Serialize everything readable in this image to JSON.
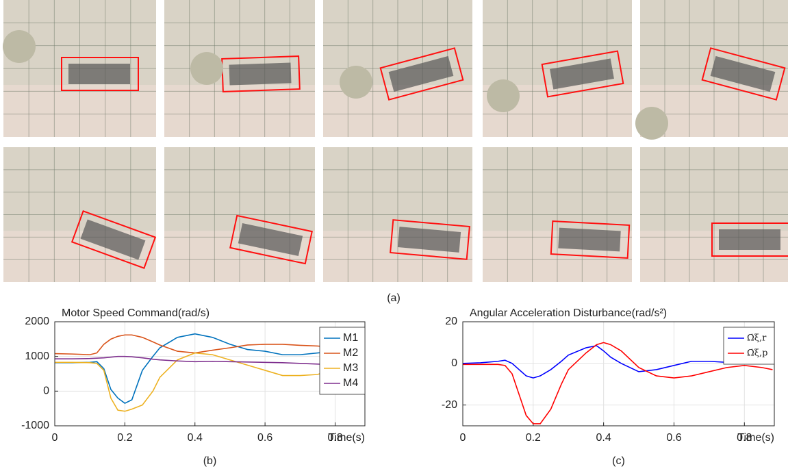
{
  "photo_caption": "(a)",
  "chart_data": [
    {
      "type": "line",
      "title": "Motor Speed Command(rad/s)",
      "x_label": "Time(s)",
      "caption": "(b)",
      "x": [
        0,
        0.05,
        0.1,
        0.12,
        0.14,
        0.16,
        0.18,
        0.2,
        0.22,
        0.25,
        0.28,
        0.3,
        0.35,
        0.4,
        0.45,
        0.5,
        0.55,
        0.6,
        0.65,
        0.7,
        0.75,
        0.8,
        0.85,
        0.88
      ],
      "series": [
        {
          "name": "M1",
          "color": "#0072BD",
          "values": [
            820,
            820,
            830,
            850,
            650,
            50,
            -200,
            -350,
            -250,
            600,
            1000,
            1250,
            1550,
            1650,
            1550,
            1350,
            1200,
            1150,
            1050,
            1050,
            1100,
            1150,
            1100,
            1050
          ]
        },
        {
          "name": "M2",
          "color": "#D95319",
          "values": [
            1080,
            1070,
            1050,
            1100,
            1350,
            1500,
            1580,
            1620,
            1620,
            1550,
            1420,
            1330,
            1150,
            1100,
            1180,
            1250,
            1330,
            1350,
            1350,
            1320,
            1300,
            1250,
            1250,
            1150
          ]
        },
        {
          "name": "M3",
          "color": "#EDB120",
          "values": [
            830,
            830,
            820,
            800,
            600,
            -200,
            -550,
            -580,
            -520,
            -400,
            0,
            400,
            900,
            1100,
            1050,
            900,
            750,
            600,
            450,
            450,
            480,
            650,
            700,
            800
          ]
        },
        {
          "name": "M4",
          "color": "#7E2F8E",
          "values": [
            930,
            930,
            940,
            950,
            960,
            980,
            1000,
            1000,
            990,
            960,
            920,
            900,
            870,
            850,
            860,
            850,
            840,
            830,
            820,
            800,
            780,
            760,
            770,
            780
          ]
        }
      ],
      "xlim": [
        0,
        0.885
      ],
      "xticks": [
        0,
        0.2,
        0.4,
        0.6,
        0.8
      ],
      "ylim": [
        -1000,
        2000
      ],
      "yticks": [
        -1000,
        0,
        1000,
        2000
      ],
      "grid": true,
      "legend": "top-right"
    },
    {
      "type": "line",
      "title": "Angular Acceleration Disturbance(rad/s²)",
      "x_label": "Time(s)",
      "caption": "(c)",
      "x": [
        0,
        0.05,
        0.1,
        0.12,
        0.14,
        0.16,
        0.18,
        0.2,
        0.22,
        0.25,
        0.28,
        0.3,
        0.35,
        0.38,
        0.4,
        0.42,
        0.45,
        0.5,
        0.55,
        0.6,
        0.65,
        0.7,
        0.75,
        0.8,
        0.85,
        0.88
      ],
      "series": [
        {
          "name": "Ω̇ξ,r",
          "color": "#0000FF",
          "values": [
            0,
            0.3,
            1,
            1.5,
            0,
            -3,
            -6,
            -7,
            -6,
            -3,
            1,
            4,
            7.5,
            8.5,
            6,
            3,
            0,
            -4,
            -3,
            -1,
            1,
            1,
            0.5,
            1,
            1.5,
            1.5
          ]
        },
        {
          "name": "Ω̇ξ,p",
          "color": "#FF0000",
          "values": [
            -0.5,
            -0.5,
            -0.5,
            -1,
            -5,
            -15,
            -25,
            -29,
            -29,
            -22,
            -10,
            -3,
            5,
            9,
            10,
            9,
            6,
            -2,
            -6,
            -7,
            -6,
            -4,
            -2,
            -1,
            -2,
            -3
          ]
        }
      ],
      "xlim": [
        0,
        0.885
      ],
      "xticks": [
        0,
        0.2,
        0.4,
        0.6,
        0.8
      ],
      "ylim": [
        -30,
        20
      ],
      "yticks": [
        -20,
        0,
        20
      ],
      "grid": true,
      "legend": "top-right"
    }
  ]
}
